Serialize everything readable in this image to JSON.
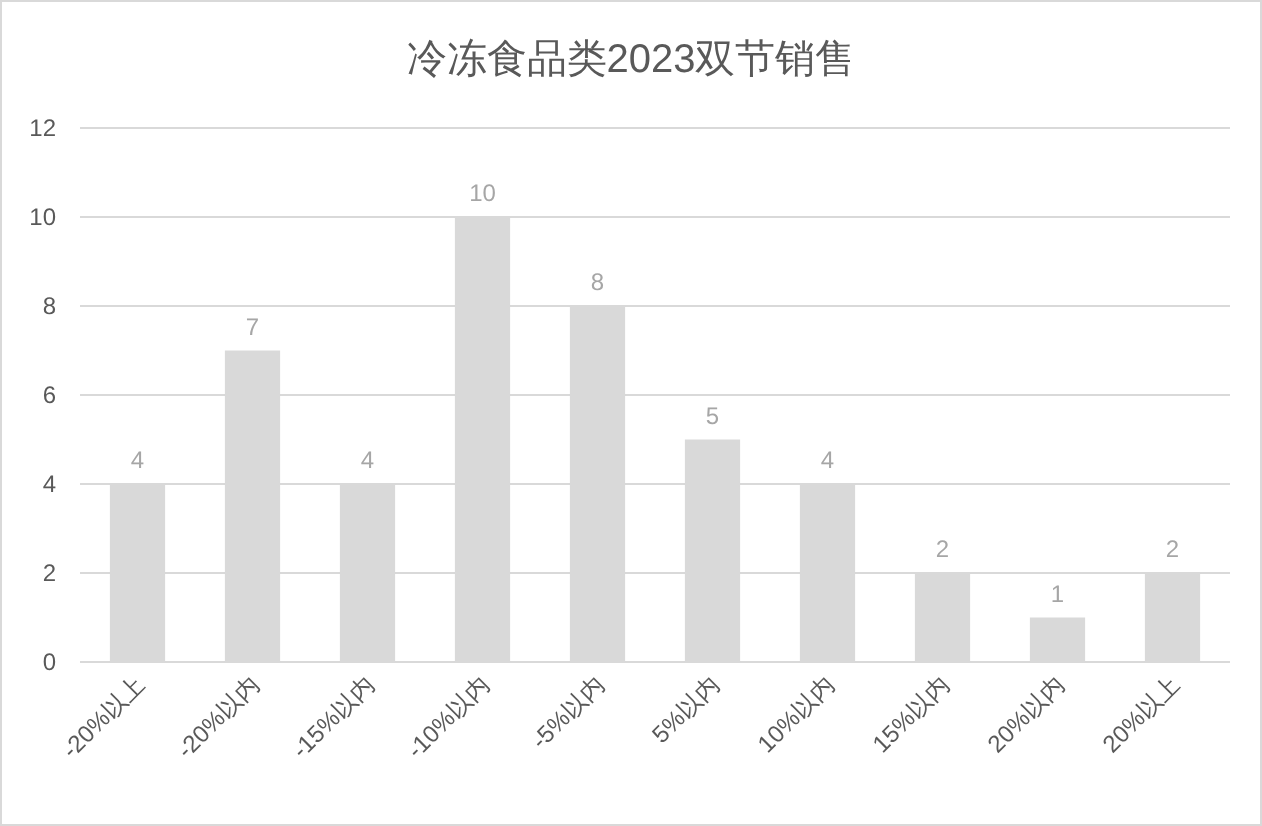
{
  "chart_data": {
    "type": "bar",
    "title": "冷冻食品类2023双节销售",
    "categories": [
      "-20%以上",
      "-20%以内",
      "-15%以内",
      "-10%以内",
      "-5%以内",
      "5%以内",
      "10%以内",
      "15%以内",
      "20%以内",
      "20%以上"
    ],
    "values": [
      4,
      7,
      4,
      10,
      8,
      5,
      4,
      2,
      1,
      2
    ],
    "color": "#d9d9d9",
    "ylim": [
      0,
      12
    ],
    "yticks": [
      0,
      2,
      4,
      6,
      8,
      10,
      12
    ],
    "grid": "y",
    "data_labels": true
  }
}
